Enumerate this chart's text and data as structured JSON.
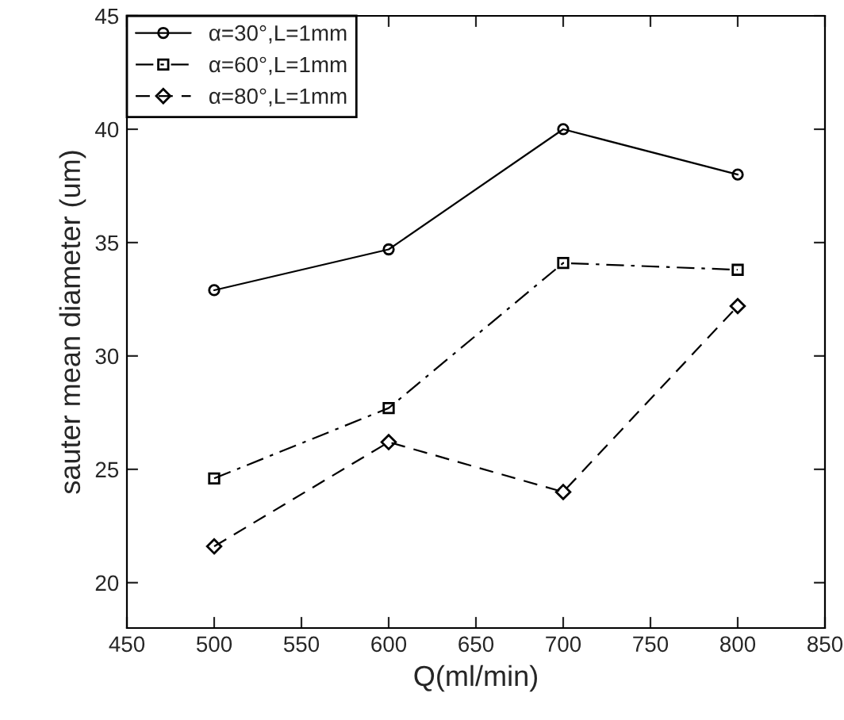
{
  "chart_data": {
    "type": "line",
    "xlabel": "Q(ml/min)",
    "ylabel": "sauter mean diameter (um)",
    "x": [
      500,
      600,
      700,
      800
    ],
    "series": [
      {
        "name": "α=30°,L=1mm",
        "color": "#000000",
        "values": [
          32.9,
          34.7,
          40.0,
          38.0
        ],
        "marker": "circle",
        "line_style": "solid"
      },
      {
        "name": "α=60°,L=1mm",
        "color": "#000000",
        "values": [
          24.6,
          27.7,
          34.1,
          33.8
        ],
        "marker": "square",
        "line_style": "dashdot"
      },
      {
        "name": "α=80°,L=1mm",
        "color": "#000000",
        "values": [
          21.6,
          26.2,
          24.0,
          32.2
        ],
        "marker": "diamond",
        "line_style": "dashed"
      }
    ],
    "xlim": [
      450,
      850
    ],
    "xticks": [
      450,
      500,
      550,
      600,
      650,
      700,
      750,
      800,
      850
    ],
    "ylim": [
      18,
      45
    ],
    "yticks": [
      20,
      25,
      30,
      35,
      40,
      45
    ],
    "grid": false,
    "legend": "top left"
  }
}
